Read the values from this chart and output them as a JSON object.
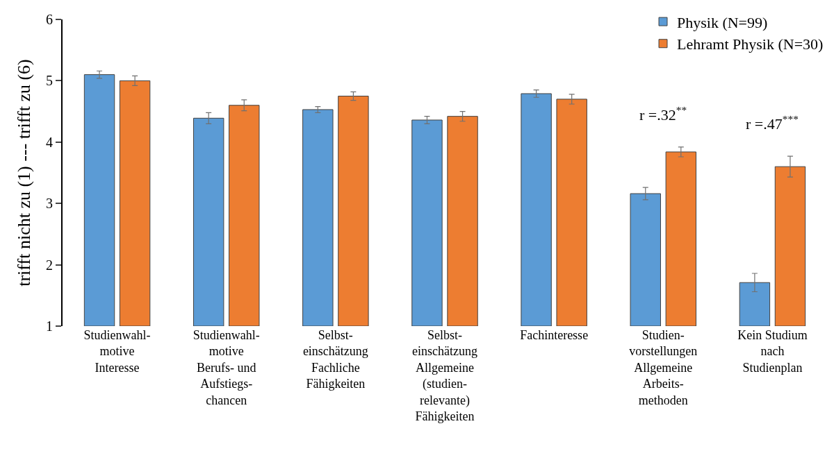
{
  "chart_data": {
    "type": "bar",
    "ylabel": "trifft nicht zu (1) --- trifft zu (6)",
    "categories": [
      "Studienwahl-\nmotive\nInteresse",
      "Studienwahl-\nmotive\nBerufs- und\nAufstiegs-\nchancen",
      "Selbst-\neinschätzung\nFachliche\nFähigkeiten",
      "Selbst-\neinschätzung\nAllgemeine\n(studien-\nrelevante)\nFähigkeiten",
      "Fachinteresse",
      "Studien-\nvorstellungen\nAllgemeine\nArbeits-\nmethoden",
      "Kein Studium\nnach\nStudienplan"
    ],
    "series": [
      {
        "name": "Physik (N=99)",
        "color": "#5b9bd5",
        "values": [
          5.1,
          4.39,
          4.53,
          4.36,
          4.79,
          3.16,
          1.71
        ],
        "errors": [
          0.06,
          0.09,
          0.05,
          0.06,
          0.06,
          0.1,
          0.15
        ]
      },
      {
        "name": "Lehramt Physik (N=30)",
        "color": "#ed7d31",
        "values": [
          5.0,
          4.6,
          4.75,
          4.42,
          4.7,
          3.84,
          3.6
        ],
        "errors": [
          0.08,
          0.09,
          0.07,
          0.08,
          0.08,
          0.08,
          0.17
        ]
      }
    ],
    "annotations": [
      "r =.32$^{**}$",
      "r =.47$^{***}$"
    ],
    "ylim": [
      1,
      6
    ],
    "yticks": [
      1,
      2,
      3,
      4,
      5,
      6
    ],
    "legend": "top right"
  }
}
